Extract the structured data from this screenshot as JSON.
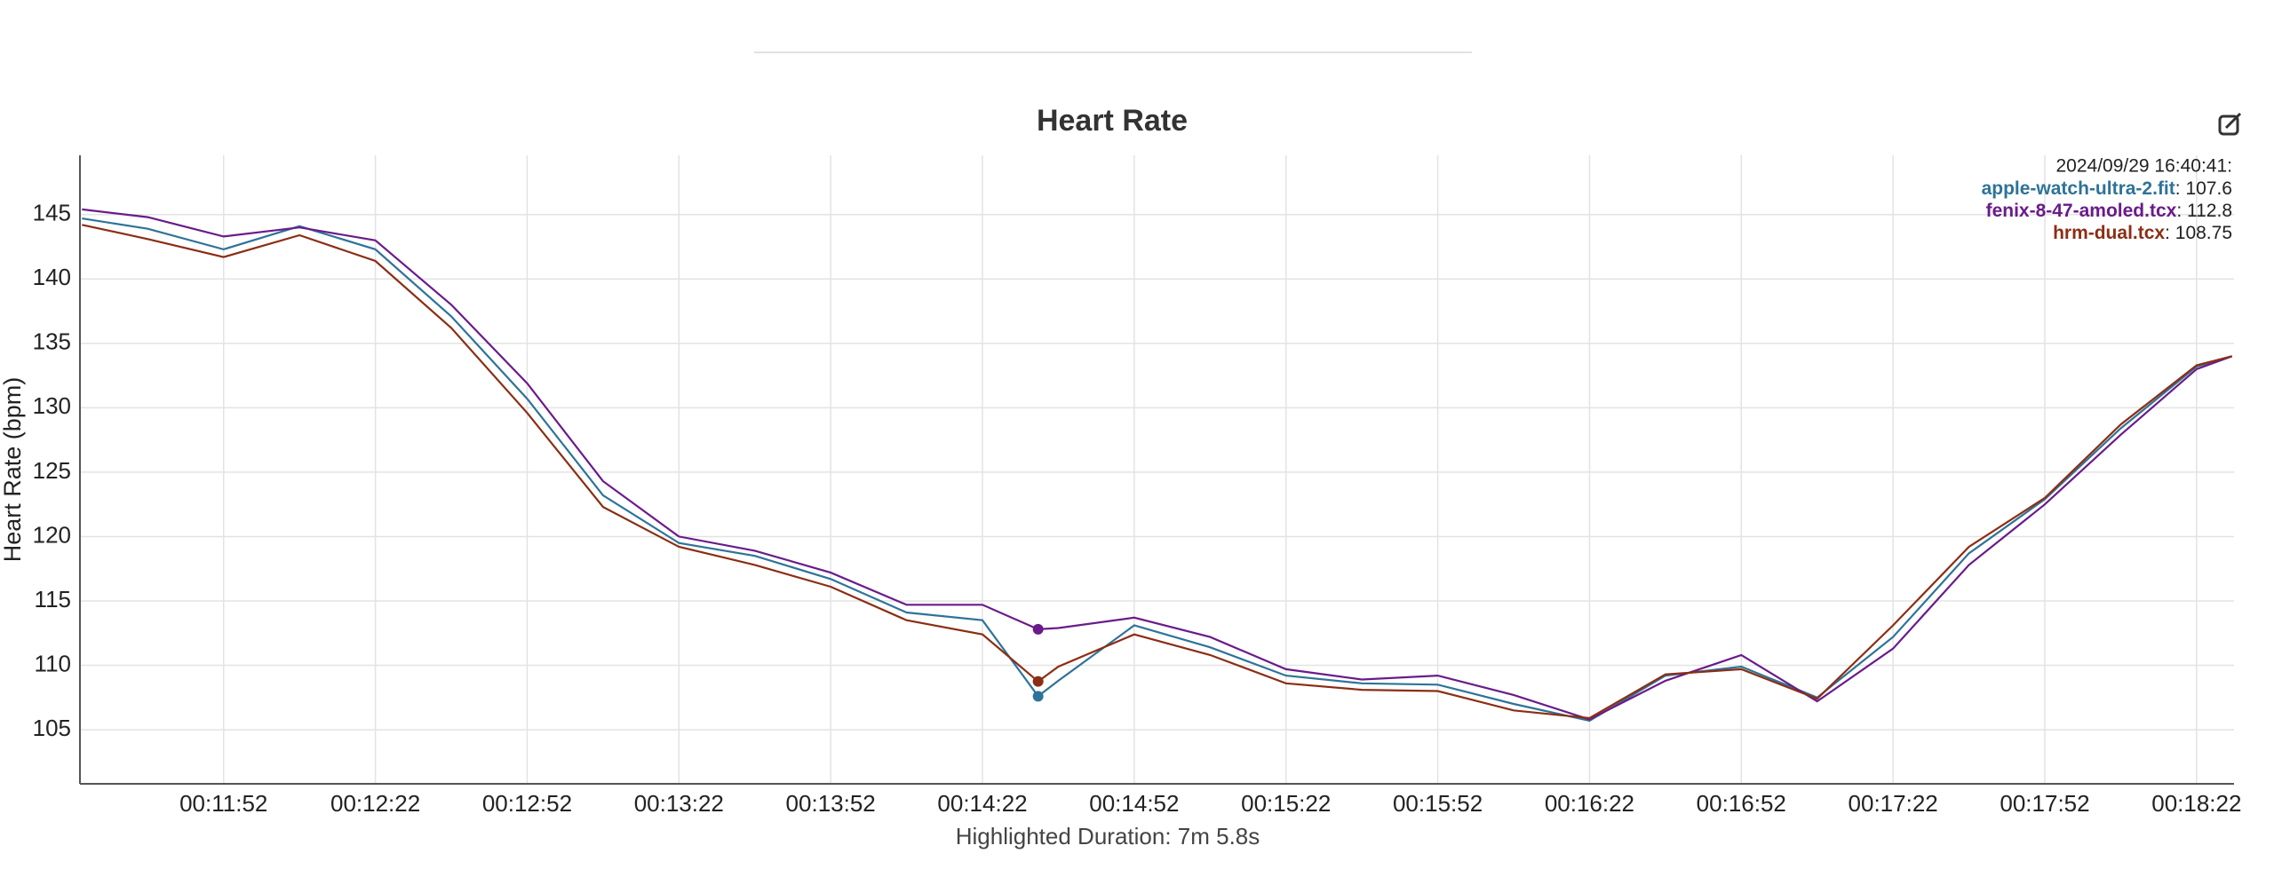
{
  "chart_data": {
    "type": "line",
    "title": "Heart Rate",
    "ylabel": "Heart Rate (bpm)",
    "footer": "Highlighted Duration: 7m 5.8s",
    "x": [
      684,
      697,
      712,
      727,
      742,
      757,
      772,
      787,
      802,
      817,
      832,
      847,
      862,
      873,
      877,
      892,
      907,
      922,
      937,
      952,
      967,
      982,
      997,
      1012,
      1027,
      1042,
      1057,
      1072,
      1087,
      1102,
      1109
    ],
    "series": [
      {
        "name": "apple-watch-ultra-2.fit",
        "color": "#2e7398",
        "values": [
          144.7,
          143.9,
          142.3,
          144.1,
          142.3,
          137.1,
          130.7,
          123.2,
          119.5,
          118.5,
          116.7,
          114.1,
          113.5,
          107.6,
          108.8,
          113.1,
          111.4,
          109.2,
          108.6,
          108.5,
          107.0,
          105.7,
          109.2,
          109.9,
          107.5,
          112.2,
          118.7,
          122.9,
          128.4,
          133.2,
          134.0
        ]
      },
      {
        "name": "fenix-8-47-amoled.tcx",
        "color": "#6a1b8a",
        "values": [
          145.4,
          144.8,
          143.3,
          144.0,
          143.0,
          138.0,
          131.9,
          124.3,
          120.0,
          118.9,
          117.2,
          114.7,
          114.7,
          112.8,
          112.9,
          113.7,
          112.2,
          109.7,
          108.9,
          109.2,
          107.7,
          105.8,
          108.8,
          110.8,
          107.2,
          111.3,
          117.8,
          122.5,
          127.9,
          133.0,
          134.0
        ]
      },
      {
        "name": "hrm-dual.tcx",
        "color": "#8b2e14",
        "values": [
          144.2,
          143.1,
          141.7,
          143.4,
          141.4,
          136.2,
          129.6,
          122.3,
          119.2,
          117.8,
          116.1,
          113.5,
          112.4,
          108.75,
          109.9,
          112.4,
          110.8,
          108.6,
          108.1,
          108.0,
          106.5,
          105.9,
          109.3,
          109.7,
          107.4,
          113.1,
          119.2,
          123.0,
          128.7,
          133.3,
          134.0
        ]
      }
    ],
    "highlight": {
      "x": 873,
      "label": "2024/09/29 16:40:41:"
    },
    "xlim": [
      683.6,
      1109.4
    ],
    "xticks": [
      {
        "value": 712,
        "label": "00:11:52"
      },
      {
        "value": 742,
        "label": "00:12:22"
      },
      {
        "value": 772,
        "label": "00:12:52"
      },
      {
        "value": 802,
        "label": "00:13:22"
      },
      {
        "value": 832,
        "label": "00:13:52"
      },
      {
        "value": 862,
        "label": "00:14:22"
      },
      {
        "value": 892,
        "label": "00:14:52"
      },
      {
        "value": 922,
        "label": "00:15:22"
      },
      {
        "value": 952,
        "label": "00:15:52"
      },
      {
        "value": 982,
        "label": "00:16:22"
      },
      {
        "value": 1012,
        "label": "00:16:52"
      },
      {
        "value": 1042,
        "label": "00:17:22"
      },
      {
        "value": 1072,
        "label": "00:17:52"
      },
      {
        "value": 1102,
        "label": "00:18:22"
      }
    ],
    "ylim": [
      100.8,
      149.6
    ],
    "yticks": [
      105,
      110,
      115,
      120,
      125,
      130,
      135,
      140,
      145
    ],
    "grid": true
  }
}
